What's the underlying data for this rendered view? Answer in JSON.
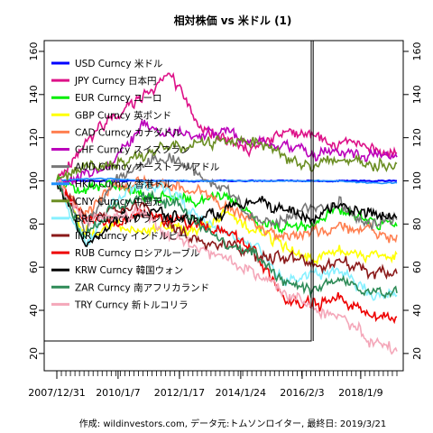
{
  "chart_data": {
    "type": "line",
    "title": "相対株価 vs 米ドル (1)",
    "footer": "作成: wildinvestors.com, データ元:トムソンロイター, 最終日: 2019/3/21",
    "x_start": "2007-12-31",
    "x_end": "2019-03-21",
    "x_tick_labels": [
      "2007/12/31",
      "2010/1/7",
      "2012/1/17",
      "2014/1/24",
      "2016/2/3",
      "2018/1/9"
    ],
    "x_ticks": [
      "2007-12-31",
      "2010-01-07",
      "2012-01-17",
      "2014-01-24",
      "2016-02-03",
      "2018-01-09"
    ],
    "ylim": [
      12,
      165
    ],
    "y_ticks": [
      20,
      40,
      60,
      80,
      100,
      120,
      140,
      160
    ],
    "grid": false,
    "marker_date": "2016-06-15",
    "legend_position": "top-left",
    "series": [
      {
        "name": "USD Curncy 米ドル",
        "color": "#0000FF",
        "values": [
          100,
          100,
          100,
          100,
          100,
          100,
          100,
          100,
          100,
          100,
          100,
          100,
          100
        ]
      },
      {
        "name": "JPY Curncy 日本円",
        "color": "#DD1188",
        "values": [
          100,
          118,
          130,
          140,
          150,
          126,
          118,
          115,
          122,
          121,
          118,
          115,
          113
        ]
      },
      {
        "name": "EUR Curncy ユーロ",
        "color": "#00EE00",
        "values": [
          100,
          96,
          100,
          92,
          92,
          90,
          94,
          80,
          78,
          80,
          86,
          82,
          79
        ]
      },
      {
        "name": "GBP Curncy 英ポンド",
        "color": "#FFFF00",
        "values": [
          100,
          76,
          80,
          76,
          79,
          78,
          84,
          78,
          70,
          64,
          68,
          66,
          66
        ]
      },
      {
        "name": "CAD Curncy カナダドル",
        "color": "#FF7F50",
        "values": [
          100,
          85,
          97,
          98,
          98,
          96,
          88,
          80,
          74,
          76,
          79,
          76,
          75
        ]
      },
      {
        "name": "CHF Curncy スイスフラン",
        "color": "#BB00BB",
        "values": [
          100,
          102,
          108,
          125,
          122,
          122,
          124,
          118,
          116,
          112,
          114,
          112,
          111
        ]
      },
      {
        "name": "AUD Curncy オーストラリアドル",
        "color": "#777777",
        "values": [
          100,
          78,
          100,
          108,
          112,
          102,
          96,
          82,
          82,
          88,
          90,
          80,
          82
        ]
      },
      {
        "name": "HKD Curncy 香港ドル",
        "color": "#1E90FF",
        "values": [
          100,
          101,
          101,
          100,
          100,
          100,
          100,
          100,
          100,
          100,
          100,
          99,
          99
        ]
      },
      {
        "name": "CNY Curncy 中国元",
        "color": "#6B8E23",
        "values": [
          100,
          107,
          108,
          112,
          115,
          117,
          119,
          119,
          112,
          106,
          110,
          108,
          108
        ]
      },
      {
        "name": "BRL Curncy ブラジルレアル",
        "color": "#87F0FF",
        "values": [
          100,
          70,
          90,
          98,
          96,
          82,
          76,
          70,
          54,
          56,
          58,
          48,
          47
        ]
      },
      {
        "name": "INR Curncy インドルピー",
        "color": "#8B1A1A",
        "values": [
          100,
          82,
          86,
          88,
          80,
          72,
          70,
          66,
          64,
          62,
          62,
          58,
          57
        ]
      },
      {
        "name": "RUB Curncy ロシアルーブル",
        "color": "#EE0000",
        "values": [
          100,
          82,
          82,
          84,
          82,
          80,
          76,
          68,
          44,
          42,
          46,
          38,
          37
        ]
      },
      {
        "name": "KRW Curncy 韓国ウォン",
        "color": "#000000",
        "values": [
          100,
          70,
          82,
          86,
          84,
          82,
          86,
          90,
          86,
          82,
          90,
          85,
          83
        ]
      },
      {
        "name": "ZAR Curncy 南アフリカランド",
        "color": "#2E8B57",
        "values": [
          100,
          74,
          88,
          94,
          90,
          80,
          70,
          66,
          54,
          50,
          54,
          50,
          48
        ]
      },
      {
        "name": "TRY Curncy 新トルコリラ",
        "color": "#F4A7B9",
        "values": [
          100,
          82,
          82,
          86,
          74,
          68,
          64,
          58,
          48,
          42,
          38,
          26,
          21
        ]
      }
    ]
  }
}
